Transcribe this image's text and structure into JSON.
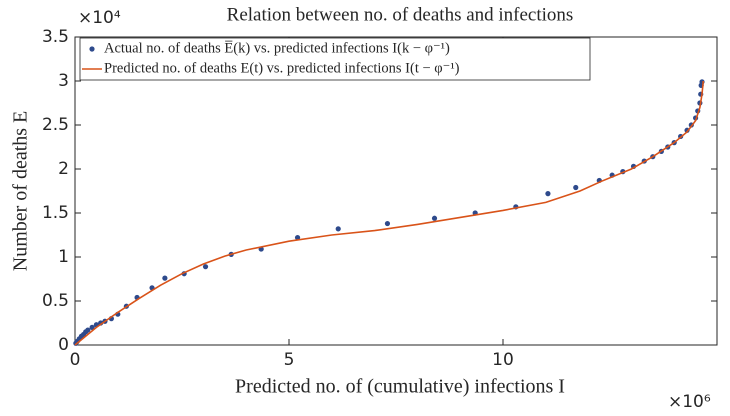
{
  "chart_data": {
    "type": "scatter-line",
    "title": "Relation between no. of deaths and infections",
    "x_label": "Predicted no. of (cumulative) infections I",
    "y_label": "Number of deaths E",
    "x_exponent": "×10⁶",
    "y_exponent": "×10⁴",
    "xlim": [
      0,
      15
    ],
    "ylim": [
      0,
      3.5
    ],
    "xticks": [
      0,
      5,
      10
    ],
    "yticks": [
      0,
      0.5,
      1,
      1.5,
      2,
      2.5,
      3,
      3.5
    ],
    "legend": "upper left",
    "series": [
      {
        "name": "Actual no. of deaths E̅(k) vs. predicted infections I(k − φ⁻¹)",
        "kind": "scatter",
        "color": "#2e4a8c",
        "x": [
          0.02,
          0.05,
          0.1,
          0.15,
          0.2,
          0.25,
          0.3,
          0.4,
          0.5,
          0.6,
          0.7,
          0.85,
          1.0,
          1.2,
          1.45,
          1.8,
          2.1,
          2.55,
          3.05,
          3.65,
          4.35,
          5.2,
          6.15,
          7.3,
          8.4,
          9.35,
          10.3,
          11.05,
          11.7,
          12.25,
          12.55,
          12.8,
          13.05,
          13.3,
          13.5,
          13.7,
          13.85,
          14.0,
          14.15,
          14.3,
          14.4,
          14.5,
          14.55,
          14.6,
          14.62,
          14.63,
          14.65
        ],
        "values": [
          0.02,
          0.04,
          0.07,
          0.1,
          0.12,
          0.15,
          0.17,
          0.2,
          0.23,
          0.25,
          0.27,
          0.3,
          0.35,
          0.44,
          0.54,
          0.65,
          0.76,
          0.81,
          0.89,
          1.03,
          1.09,
          1.22,
          1.32,
          1.38,
          1.44,
          1.5,
          1.57,
          1.72,
          1.79,
          1.87,
          1.93,
          1.97,
          2.03,
          2.09,
          2.14,
          2.2,
          2.25,
          2.3,
          2.37,
          2.44,
          2.5,
          2.58,
          2.66,
          2.75,
          2.85,
          2.95,
          2.99
        ]
      },
      {
        "name": "Predicted no. of deaths E(t) vs. predicted infections I(t − φ⁻¹)",
        "kind": "line",
        "color": "#d95319",
        "x": [
          0,
          0.5,
          1,
          1.5,
          2,
          2.5,
          3,
          3.5,
          4,
          5,
          6,
          7,
          8,
          9,
          10,
          11,
          11.8,
          12.3,
          13,
          13.5,
          14,
          14.3,
          14.5,
          14.6,
          14.65,
          14.68
        ],
        "values": [
          0,
          0.2,
          0.37,
          0.53,
          0.68,
          0.81,
          0.92,
          1.01,
          1.08,
          1.18,
          1.25,
          1.3,
          1.37,
          1.45,
          1.53,
          1.62,
          1.75,
          1.86,
          2.0,
          2.14,
          2.3,
          2.42,
          2.55,
          2.7,
          2.85,
          3.0
        ]
      }
    ]
  }
}
